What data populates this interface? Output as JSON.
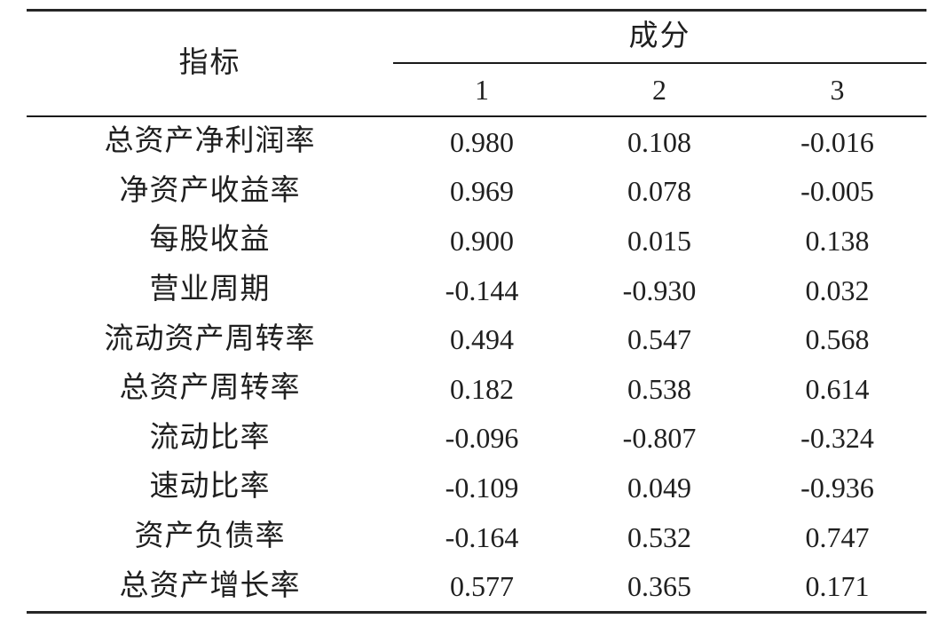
{
  "table": {
    "header": {
      "indicator": "指标",
      "component": "成分",
      "component_columns": [
        "1",
        "2",
        "3"
      ]
    },
    "rows": [
      {
        "label": "总资产净利润率",
        "values": [
          "0.980",
          "0.108",
          "-0.016"
        ]
      },
      {
        "label": "净资产收益率",
        "values": [
          "0.969",
          "0.078",
          "-0.005"
        ]
      },
      {
        "label": "每股收益",
        "values": [
          "0.900",
          "0.015",
          "0.138"
        ]
      },
      {
        "label": "营业周期",
        "values": [
          "-0.144",
          "-0.930",
          "0.032"
        ]
      },
      {
        "label": "流动资产周转率",
        "values": [
          "0.494",
          "0.547",
          "0.568"
        ]
      },
      {
        "label": "总资产周转率",
        "values": [
          "0.182",
          "0.538",
          "0.614"
        ]
      },
      {
        "label": "流动比率",
        "values": [
          "-0.096",
          "-0.807",
          "-0.324"
        ]
      },
      {
        "label": "速动比率",
        "values": [
          "-0.109",
          "0.049",
          "-0.936"
        ]
      },
      {
        "label": "资产负债率",
        "values": [
          "-0.164",
          "0.532",
          "0.747"
        ]
      },
      {
        "label": "总资产增长率",
        "values": [
          "0.577",
          "0.365",
          "0.171"
        ]
      }
    ]
  },
  "colors": {
    "text": "#1f1f1f",
    "rule_thick": "#262626",
    "rule_thin": "#1a1a1a",
    "background": "#ffffff"
  }
}
